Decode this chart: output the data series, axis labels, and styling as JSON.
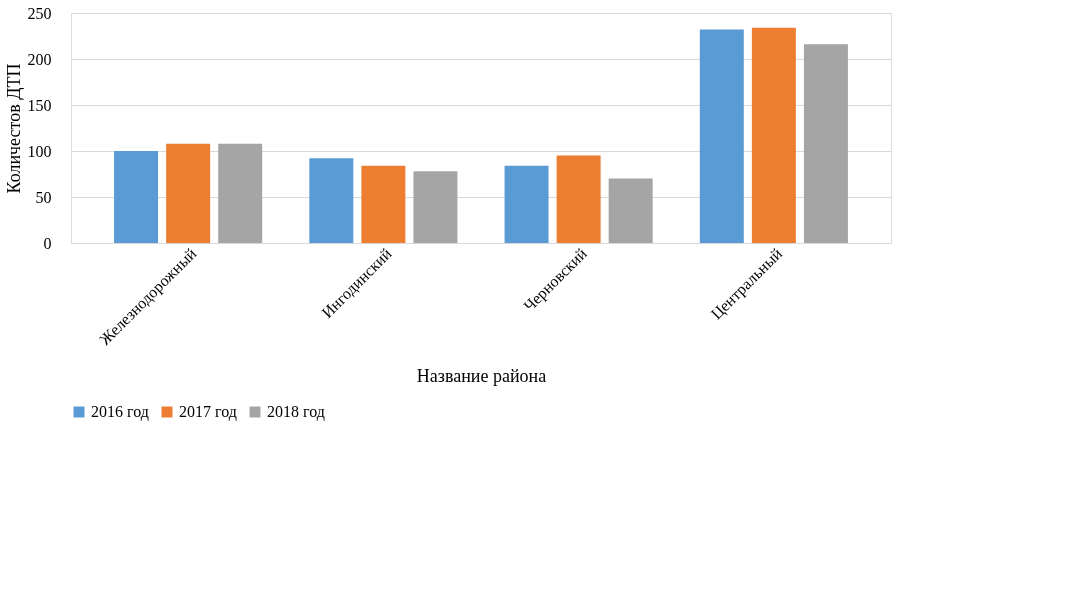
{
  "chart_data": {
    "type": "bar",
    "xlabel": "Название района",
    "ylabel": "Количестов ДТП",
    "categories": [
      "Железнодорожный",
      "Ингодинский",
      "Черновский",
      "Центральный"
    ],
    "series": [
      {
        "name": "2016 год",
        "color": "#5b9bd5",
        "values": [
          100,
          92,
          84,
          232
        ]
      },
      {
        "name": "2017 год",
        "color": "#ed7d31",
        "values": [
          108,
          84,
          95,
          234
        ]
      },
      {
        "name": "2018 год",
        "color": "#a5a5a5",
        "values": [
          108,
          78,
          70,
          216
        ]
      }
    ],
    "ylim": [
      0,
      250
    ],
    "yticks": [
      0,
      50,
      100,
      150,
      200,
      250
    ],
    "grid": "y",
    "legend": "bottom"
  }
}
